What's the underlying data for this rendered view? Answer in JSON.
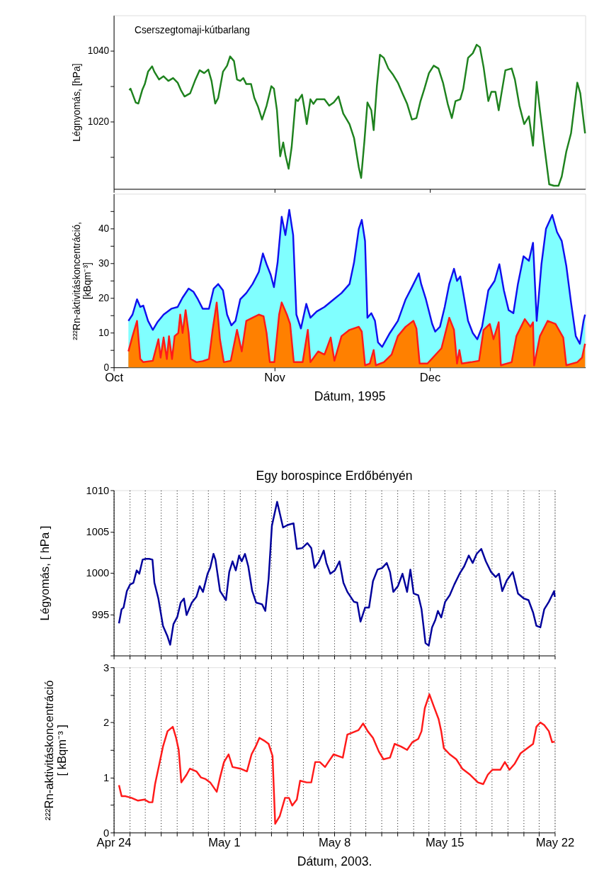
{
  "chart_data": [
    {
      "type": "line",
      "ylabel": "Légnyomás, [hPa]",
      "annotations": [
        "Cserszegtomaji-kútbarlang"
      ],
      "tick_labels": "y",
      "xlim": [
        "1995-10-01",
        "1995-12-31"
      ],
      "xticks": [
        {
          "value": "1995-10-01",
          "label": null
        },
        {
          "value": "1995-11-01",
          "label": null
        },
        {
          "value": "1995-12-01",
          "label": null
        }
      ],
      "ylim": [
        1001,
        1050
      ],
      "yticks": [
        {
          "value": 1010,
          "label": null
        },
        1020,
        {
          "value": 1030,
          "label": null
        },
        1040
      ],
      "x": [
        "1995-10-04T00:00",
        "1995-10-04T06:00",
        "1995-10-05T06:00",
        "1995-10-05T18:00",
        "1995-10-06T12:00",
        "1995-10-07T00:00",
        "1995-10-07T15:00",
        "1995-10-08T10:00",
        "1995-10-08T20:00",
        "1995-10-09T18:00",
        "1995-10-10T15:00",
        "1995-10-11T13:00",
        "1995-10-12T11:00",
        "1995-10-13T08:00",
        "1995-10-13T23:00",
        "1995-10-14T16:00",
        "1995-10-15T18:00",
        "1995-10-16T16:00",
        "1995-10-17T14:00",
        "1995-10-18T11:00",
        "1995-10-19T06:00",
        "1995-10-19T21:00",
        "1995-10-20T14:00",
        "1995-10-21T04:00",
        "1995-10-22T02:00",
        "1995-10-22T21:00",
        "1995-10-23T11:00",
        "1995-10-24T05:00",
        "1995-10-24T19:00",
        "1995-10-25T10:00",
        "1995-10-26T00:00",
        "1995-10-26T14:00",
        "1995-10-27T12:00",
        "1995-10-28T03:00",
        "1995-10-28T21:00",
        "1995-10-29T15:00",
        "1995-10-30T12:00",
        "1995-10-31T10:00",
        "1995-10-31T22:00",
        "1995-11-01T12:00",
        "1995-11-02T03:00",
        "1995-11-02T17:00",
        "1995-11-03T03:00",
        "1995-11-03T18:00",
        "1995-11-04T08:00",
        "1995-11-05T03:00",
        "1995-11-05T13:00",
        "1995-11-06T08:00",
        "1995-11-06T18:00",
        "1995-11-07T06:00",
        "1995-11-07T23:00",
        "1995-11-08T13:00",
        "1995-11-09T04:00",
        "1995-11-10T16:00",
        "1995-11-11T14:00",
        "1995-11-12T11:00",
        "1995-11-13T09:00",
        "1995-11-14T07:00",
        "1995-11-15T12:00",
        "1995-11-16T09:00",
        "1995-11-17T07:00",
        "1995-11-17T18:00",
        "1995-11-18T09:00",
        "1995-11-18T23:00",
        "1995-11-19T17:00",
        "1995-11-20T04:00",
        "1995-11-20T19:00",
        "1995-11-21T09:00",
        "1995-11-22T03:00",
        "1995-11-23T00:00",
        "1995-11-23T22:00",
        "1995-11-24T20:00",
        "1995-11-25T17:00",
        "1995-11-26T15:00",
        "1995-11-27T13:00",
        "1995-11-28T10:00",
        "1995-11-29T05:00",
        "1995-11-29T23:00",
        "1995-11-30T20:00",
        "1995-12-01T18:00",
        "1995-12-02T16:00",
        "1995-12-03T13:00",
        "1995-12-04T11:00",
        "1995-12-05T06:00",
        "1995-12-05T23:00",
        "1995-12-06T21:00",
        "1995-12-07T11:00",
        "1995-12-08T09:00",
        "1995-12-09T07:00",
        "1995-12-10T01:00",
        "1995-12-10T16:00",
        "1995-12-11T09:00",
        "1995-12-12T07:00",
        "1995-12-12T21:00",
        "1995-12-13T16:00",
        "1995-12-14T07:00",
        "1995-12-14T21:00",
        "1995-12-15T14:00",
        "1995-12-16T19:00",
        "1995-12-17T10:00",
        "1995-12-18T07:00",
        "1995-12-19T05:00",
        "1995-12-20T03:00",
        "1995-12-20T22:00",
        "1995-12-21T15:00",
        "1995-12-22T06:00",
        "1995-12-23T03:00",
        "1995-12-24T01:00",
        "1995-12-24T23:00",
        "1995-12-25T20:00",
        "1995-12-26T11:00",
        "1995-12-27T08:00",
        "1995-12-28T06:00",
        "1995-12-29T11:00",
        "1995-12-30T01:00",
        "1995-12-30T23:00"
      ],
      "series": [
        {
          "color": "#1e821e",
          "values": [
            1028.9,
            1029.3,
            1025.4,
            1025.1,
            1028.9,
            1030.6,
            1034.1,
            1035.6,
            1034.1,
            1031.9,
            1032.8,
            1031.5,
            1032.3,
            1031.0,
            1028.9,
            1027.1,
            1028.0,
            1031.5,
            1034.5,
            1033.7,
            1034.7,
            1031.5,
            1025.1,
            1026.7,
            1034.1,
            1035.8,
            1038.4,
            1037.1,
            1031.9,
            1031.5,
            1032.3,
            1030.6,
            1030.6,
            1026.7,
            1024.1,
            1020.6,
            1024.5,
            1030.0,
            1029.3,
            1023.2,
            1010.2,
            1014.1,
            1010.6,
            1006.7,
            1012.8,
            1026.3,
            1025.8,
            1027.6,
            1024.1,
            1019.3,
            1026.3,
            1025.0,
            1026.3,
            1026.3,
            1024.5,
            1025.4,
            1027.1,
            1022.3,
            1019.3,
            1015.4,
            1007.1,
            1004.1,
            1014.5,
            1025.4,
            1023.2,
            1017.6,
            1030.2,
            1038.9,
            1038.0,
            1035.0,
            1033.2,
            1031.0,
            1028.0,
            1025.0,
            1020.6,
            1021.0,
            1025.8,
            1029.3,
            1033.7,
            1035.8,
            1035.0,
            1031.0,
            1025.0,
            1021.0,
            1025.8,
            1026.3,
            1029.3,
            1038.0,
            1039.3,
            1041.7,
            1041.0,
            1035.4,
            1025.8,
            1028.4,
            1028.4,
            1023.2,
            1028.4,
            1034.5,
            1035.0,
            1031.9,
            1024.5,
            1019.3,
            1021.5,
            1013.2,
            1031.2,
            1023.2,
            1012.8,
            1002.3,
            1001.9,
            1001.9,
            1004.5,
            1011.5,
            1016.7,
            1031.0,
            1028.0,
            1016.7
          ]
        }
      ]
    },
    {
      "type": "area",
      "ylabel": "²²²Rn-aktivitáskoncentráció,\n[kBqm⁻³]",
      "xlabel": "Dátum, 1995",
      "colors": [
        "#80ffff",
        "#ff8000"
      ],
      "xlim": [
        "1995-10-01",
        "1995-12-31"
      ],
      "xticks": [
        {
          "value": "1995-10-01",
          "label": "Oct"
        },
        {
          "value": "1995-11-01",
          "label": "Nov"
        },
        {
          "value": "1995-12-01",
          "label": "Dec"
        }
      ],
      "ylim": [
        0,
        50
      ],
      "yticks": [
        0,
        {
          "value": 5,
          "label": null
        },
        10,
        {
          "value": 15,
          "label": null
        },
        20,
        {
          "value": 25,
          "label": null
        },
        30,
        {
          "value": 35,
          "label": null
        },
        40,
        {
          "value": 45,
          "label": null
        }
      ],
      "series": [
        {
          "color": "#1010ee",
          "x": [
            "1995-10-03T20:00",
            "1995-10-04T15:00",
            "1995-10-05T12:00",
            "1995-10-06T03:00",
            "1995-10-06T17:00",
            "1995-10-07T15:00",
            "1995-10-08T13:00",
            "1995-10-09T10:00",
            "1995-10-10T15:00",
            "1995-10-12T03:00",
            "1995-10-13T08:00",
            "1995-10-14T06:00",
            "1995-10-15T11:00",
            "1995-10-16T09:00",
            "1995-10-17T06:00",
            "1995-10-18T04:00",
            "1995-10-19T09:00",
            "1995-10-20T07:00",
            "1995-10-21T04:00",
            "1995-10-22T02:00",
            "1995-10-22T21:00",
            "1995-10-23T17:00",
            "1995-10-24T12:00",
            "1995-10-25T10:00",
            "1995-10-26T14:00",
            "1995-10-27T19:00",
            "1995-10-29T00:00",
            "1995-10-29T19:00",
            "1995-10-30T12:00",
            "1995-10-31T07:00",
            "1995-10-31T22:00",
            "1995-11-01T15:00",
            "1995-11-02T10:00",
            "1995-11-03T03:00",
            "1995-11-03T21:00",
            "1995-11-04T15:00",
            "1995-11-05T06:00",
            "1995-11-06T03:00",
            "1995-11-07T04:00",
            "1995-11-07T23:00",
            "1995-11-09T04:00",
            "1995-11-10T16:00",
            "1995-11-12T11:00",
            "1995-11-13T23:00",
            "1995-11-15T12:00",
            "1995-11-16T09:00",
            "1995-11-17T07:00",
            "1995-11-17T21:00",
            "1995-11-18T12:00",
            "1995-11-18T23:00",
            "1995-11-19T17:00",
            "1995-11-20T10:00",
            "1995-11-21T00:00",
            "1995-11-21T19:00",
            "1995-11-23T07:00",
            "1995-11-24T20:00",
            "1995-11-26T08:00",
            "1995-11-27T13:00",
            "1995-11-28T21:00",
            "1995-11-29T08:00",
            "1995-11-30T06:00",
            "1995-12-01T11:00",
            "1995-12-02T01:00",
            "1995-12-02T23:00",
            "1995-12-03T21:00",
            "1995-12-04T18:00",
            "1995-12-05T16:00",
            "1995-12-06T06:00",
            "1995-12-06T21:00",
            "1995-12-07T11:00",
            "1995-12-08T09:00",
            "1995-12-09T07:00",
            "1995-12-10T04:00",
            "1995-12-11T02:00",
            "1995-12-12T07:00",
            "1995-12-13T12:00",
            "1995-12-14T10:00",
            "1995-12-15T07:00",
            "1995-12-16T05:00",
            "1995-12-17T03:00",
            "1995-12-18T00:00",
            "1995-12-19T02:00",
            "1995-12-20T03:00",
            "1995-12-20T22:00",
            "1995-12-21T15:00",
            "1995-12-22T13:00",
            "1995-12-23T10:00",
            "1995-12-24T15:00",
            "1995-12-25T13:00",
            "1995-12-26T11:00",
            "1995-12-27T08:00",
            "1995-12-28T06:00",
            "1995-12-29T04:00",
            "1995-12-29T23:00",
            "1995-12-30T16:00",
            "1995-12-30T23:00"
          ],
          "values": [
            13.4,
            15.2,
            19.6,
            17.4,
            17.8,
            13.4,
            10.8,
            13.0,
            15.2,
            16.9,
            17.4,
            20.0,
            22.7,
            21.8,
            19.6,
            16.9,
            16.9,
            22.7,
            24.0,
            22.2,
            15.2,
            12.1,
            13.4,
            19.6,
            21.4,
            24.0,
            27.5,
            32.8,
            29.7,
            26.7,
            23.1,
            30.2,
            43.4,
            38.1,
            45.4,
            38.1,
            15.2,
            11.2,
            18.3,
            14.3,
            16.1,
            17.4,
            19.6,
            21.4,
            24.0,
            30.2,
            39.9,
            42.5,
            36.4,
            14.3,
            15.6,
            13.4,
            7.2,
            5.9,
            9.9,
            13.4,
            19.6,
            23.1,
            27.1,
            24.0,
            19.6,
            12.5,
            10.3,
            11.7,
            17.4,
            24.0,
            28.4,
            24.9,
            26.2,
            21.4,
            13.4,
            9.9,
            8.1,
            11.7,
            22.2,
            24.9,
            29.7,
            22.2,
            16.5,
            15.6,
            24.0,
            32.0,
            30.7,
            35.9,
            13.4,
            29.7,
            39.9,
            43.9,
            39.0,
            36.4,
            29.3,
            18.7,
            9.0,
            6.8,
            13.4,
            15.2
          ]
        },
        {
          "color": "#ff1a1a",
          "x": [
            "1995-10-03T20:00",
            "1995-10-04T15:00",
            "1995-10-05T12:00",
            "1995-10-06T03:00",
            "1995-10-06T17:00",
            "1995-10-08T13:00",
            "1995-10-09T15:00",
            "1995-10-10T01:00",
            "1995-10-10T15:00",
            "1995-10-11T06:00",
            "1995-10-11T16:00",
            "1995-10-12T06:00",
            "1995-10-12T18:00",
            "1995-10-13T11:00",
            "1995-10-13T20:00",
            "1995-10-14T07:00",
            "1995-10-14T21:00",
            "1995-10-15T11:00",
            "1995-10-15T21:00",
            "1995-10-16T23:00",
            "1995-10-18T04:00",
            "1995-10-19T09:00",
            "1995-10-20T02:00",
            "1995-10-20T21:00",
            "1995-10-21T12:00",
            "1995-10-22T06:00",
            "1995-10-23T14:00",
            "1995-10-24T19:00",
            "1995-10-25T17:00",
            "1995-10-26T14:00",
            "1995-10-27T19:00",
            "1995-10-29T00:00",
            "1995-10-29T22:00",
            "1995-10-30T12:00",
            "1995-10-31T03:00",
            "1995-11-01T00:00",
            "1995-11-01T22:00",
            "1995-11-02T10:00",
            "1995-11-03T10:00",
            "1995-11-04T01:00",
            "1995-11-04T18:00",
            "1995-11-06T11:00",
            "1995-11-07T11:00",
            "1995-11-07T23:00",
            "1995-11-09T11:00",
            "1995-11-10T16:00",
            "1995-11-11T21:00",
            "1995-11-12T14:00",
            "1995-11-13T23:00",
            "1995-11-15T12:00",
            "1995-11-17T07:00",
            "1995-11-17T21:00",
            "1995-11-18T12:00",
            "1995-11-19T10:00",
            "1995-11-20T04:00",
            "1995-11-20T14:00",
            "1995-11-22T03:00",
            "1995-11-23T15:00",
            "1995-11-24T20:00",
            "1995-11-26T08:00",
            "1995-11-27T20:00",
            "1995-11-28T10:00",
            "1995-11-29T01:00",
            "1995-11-30T13:00",
            "1995-12-03T06:00",
            "1995-12-04T18:00",
            "1995-12-05T16:00",
            "1995-12-06T06:00",
            "1995-12-06T17:00",
            "1995-12-07T04:00",
            "1995-12-08T23:00",
            "1995-12-10T12:00",
            "1995-12-11T09:00",
            "1995-12-12T14:00",
            "1995-12-13T07:00",
            "1995-12-14T07:00",
            "1995-12-14T17:00",
            "1995-12-16T19:00",
            "1995-12-17T17:00",
            "1995-12-19T08:00",
            "1995-12-20T10:00",
            "1995-12-20T22:00",
            "1995-12-21T03:00",
            "1995-12-22T06:00",
            "1995-12-23T18:00",
            "1995-12-25T06:00",
            "1995-12-26T18:00",
            "1995-12-27T08:00",
            "1995-12-29T11:00",
            "1995-12-30T09:00",
            "1995-12-30T23:00"
          ],
          "values": [
            4.6,
            9.0,
            13.4,
            2.4,
            1.5,
            1.9,
            8.1,
            2.8,
            8.6,
            2.4,
            9.0,
            2.4,
            9.0,
            9.9,
            15.2,
            9.9,
            16.5,
            9.9,
            2.4,
            1.5,
            1.8,
            2.4,
            10.8,
            18.7,
            8.1,
            1.5,
            1.9,
            10.8,
            4.6,
            13.4,
            14.3,
            15.2,
            14.7,
            9.9,
            1.5,
            1.5,
            15.2,
            18.7,
            15.2,
            12.5,
            1.5,
            1.5,
            10.8,
            1.5,
            4.6,
            3.7,
            8.6,
            1.9,
            9.0,
            10.8,
            11.7,
            10.3,
            0.6,
            1.1,
            5.0,
            0.6,
            1.5,
            3.7,
            9.0,
            11.7,
            13.4,
            11.2,
            1.1,
            1.1,
            5.5,
            14.3,
            10.8,
            1.1,
            5.0,
            1.1,
            1.5,
            1.9,
            10.8,
            12.5,
            8.1,
            13.0,
            0.6,
            1.5,
            9.0,
            13.9,
            11.7,
            13.0,
            0.6,
            9.0,
            13.4,
            12.5,
            8.6,
            0.6,
            1.5,
            2.8,
            6.8
          ]
        }
      ]
    },
    {
      "type": "line",
      "title": "Egy borospince Erdőbényén",
      "ylabel": "Légyomás, [ hPa ]",
      "tick_labels": "y",
      "grid": "x",
      "xlim": [
        "2003-04-24",
        "2003-05-22"
      ],
      "xticks": [
        {
          "value": "2003-04-24",
          "label": null
        },
        {
          "value": "2003-04-25",
          "label": null
        },
        {
          "value": "2003-04-26",
          "label": null
        },
        {
          "value": "2003-04-27",
          "label": null
        },
        {
          "value": "2003-04-28",
          "label": null
        },
        {
          "value": "2003-04-29",
          "label": null
        },
        {
          "value": "2003-04-30",
          "label": null
        },
        {
          "value": "2003-05-01",
          "label": null
        },
        {
          "value": "2003-05-02",
          "label": null
        },
        {
          "value": "2003-05-03",
          "label": null
        },
        {
          "value": "2003-05-04",
          "label": null
        },
        {
          "value": "2003-05-05",
          "label": null
        },
        {
          "value": "2003-05-06",
          "label": null
        },
        {
          "value": "2003-05-07",
          "label": null
        },
        {
          "value": "2003-05-08",
          "label": null
        },
        {
          "value": "2003-05-09",
          "label": null
        },
        {
          "value": "2003-05-10",
          "label": null
        },
        {
          "value": "2003-05-11",
          "label": null
        },
        {
          "value": "2003-05-12",
          "label": null
        },
        {
          "value": "2003-05-13",
          "label": null
        },
        {
          "value": "2003-05-14",
          "label": null
        },
        {
          "value": "2003-05-15",
          "label": null
        },
        {
          "value": "2003-05-16",
          "label": null
        },
        {
          "value": "2003-05-17",
          "label": null
        },
        {
          "value": "2003-05-18",
          "label": null
        },
        {
          "value": "2003-05-19",
          "label": null
        },
        {
          "value": "2003-05-20",
          "label": null
        },
        {
          "value": "2003-05-21",
          "label": null
        },
        {
          "value": "2003-05-22",
          "label": null
        }
      ],
      "ylim": [
        990,
        1010
      ],
      "yticks": [
        {
          "value": 990,
          "label": null
        },
        995,
        1000,
        1005,
        1010
      ],
      "x": [
        "2003-04-24T08:00",
        "2003-04-24T12:00",
        "2003-04-24T15:00",
        "2003-04-24T20:00",
        "2003-04-25T01:00",
        "2003-04-25T06:00",
        "2003-04-25T11:00",
        "2003-04-25T15:00",
        "2003-04-25T20:00",
        "2003-04-26T01:00",
        "2003-04-26T06:00",
        "2003-04-26T11:00",
        "2003-04-26T14:00",
        "2003-04-26T20:00",
        "2003-04-27T03:00",
        "2003-04-27T10:00",
        "2003-04-27T14:00",
        "2003-04-27T19:00",
        "2003-04-28T01:00",
        "2003-04-28T06:00",
        "2003-04-28T11:00",
        "2003-04-28T15:00",
        "2003-04-28T23:00",
        "2003-04-29T06:00",
        "2003-04-29T11:00",
        "2003-04-29T16:00",
        "2003-04-29T23:00",
        "2003-04-30T03:00",
        "2003-04-30T08:00",
        "2003-04-30T11:00",
        "2003-04-30T18:00",
        "2003-05-01T03:00",
        "2003-05-01T08:00",
        "2003-05-01T13:00",
        "2003-05-01T18:00",
        "2003-05-01T23:00",
        "2003-05-02T03:00",
        "2003-05-02T08:00",
        "2003-05-02T13:00",
        "2003-05-02T19:00",
        "2003-05-03T01:00",
        "2003-05-03T10:00",
        "2003-05-03T15:00",
        "2003-05-03T20:00",
        "2003-05-04T01:00",
        "2003-05-04T09:00",
        "2003-05-04T18:00",
        "2003-05-05T01:00",
        "2003-05-05T10:00",
        "2003-05-05T15:00",
        "2003-05-05T23:00",
        "2003-05-06T07:00",
        "2003-05-06T13:00",
        "2003-05-06T18:00",
        "2003-05-07T01:00",
        "2003-05-07T08:00",
        "2003-05-07T12:00",
        "2003-05-07T18:00",
        "2003-05-08T01:00",
        "2003-05-08T08:00",
        "2003-05-08T14:00",
        "2003-05-08T20:00",
        "2003-05-09T06:00",
        "2003-05-09T11:00",
        "2003-05-09T16:00",
        "2003-05-09T23:00",
        "2003-05-10T05:00",
        "2003-05-10T11:00",
        "2003-05-10T18:00",
        "2003-05-11T01:00",
        "2003-05-11T08:00",
        "2003-05-11T13:00",
        "2003-05-11T18:00",
        "2003-05-12T01:00",
        "2003-05-12T08:00",
        "2003-05-12T15:00",
        "2003-05-12T20:00",
        "2003-05-13T01:00",
        "2003-05-13T08:00",
        "2003-05-13T13:00",
        "2003-05-13T19:00",
        "2003-05-14T00:00",
        "2003-05-14T05:00",
        "2003-05-14T10:00",
        "2003-05-14T14:00",
        "2003-05-14T19:00",
        "2003-05-15T01:00",
        "2003-05-15T08:00",
        "2003-05-15T15:00",
        "2003-05-15T23:00",
        "2003-05-16T06:00",
        "2003-05-16T13:00",
        "2003-05-16T19:00",
        "2003-05-17T01:00",
        "2003-05-17T08:00",
        "2003-05-17T15:00",
        "2003-05-17T23:00",
        "2003-05-18T06:00",
        "2003-05-18T11:00",
        "2003-05-18T16:00",
        "2003-05-18T23:00",
        "2003-05-19T08:00",
        "2003-05-19T16:00",
        "2003-05-20T01:00",
        "2003-05-20T08:00",
        "2003-05-20T15:00",
        "2003-05-20T20:00",
        "2003-05-21T02:00",
        "2003-05-21T08:00",
        "2003-05-21T15:00",
        "2003-05-21T23:00",
        "2003-05-22T00:00"
      ],
      "series": [
        {
          "color": "#00009c",
          "values": [
            993.9,
            995.6,
            995.8,
            997.8,
            998.6,
            998.8,
            1000.3,
            999.9,
            1001.6,
            1001.7,
            1001.7,
            1001.6,
            998.8,
            996.9,
            993.6,
            992.3,
            991.3,
            993.8,
            994.7,
            996.4,
            996.9,
            994.9,
            996.4,
            997.1,
            998.4,
            997.7,
            999.9,
            1000.6,
            1002.3,
            1001.6,
            997.8,
            996.7,
            1000.1,
            1001.4,
            1000.3,
            1002.1,
            1001.4,
            1002.3,
            1000.8,
            997.8,
            996.4,
            996.2,
            995.4,
            999.3,
            1005.7,
            1008.6,
            1005.5,
            1005.8,
            1006.0,
            1002.9,
            1003.0,
            1003.6,
            1003.0,
            1000.6,
            1001.4,
            1002.7,
            1001.2,
            999.9,
            1000.3,
            1001.4,
            998.8,
            997.7,
            996.5,
            996.4,
            994.1,
            995.8,
            995.8,
            999.0,
            1000.4,
            1000.6,
            1001.2,
            1000.1,
            997.7,
            998.4,
            999.9,
            997.7,
            1000.4,
            997.5,
            997.3,
            995.6,
            991.5,
            991.2,
            993.4,
            994.3,
            995.4,
            994.6,
            996.5,
            997.3,
            998.6,
            999.9,
            1000.8,
            1002.1,
            1001.2,
            1002.3,
            1002.9,
            1001.4,
            1000.1,
            999.5,
            999.9,
            997.8,
            999.1,
            1000.1,
            997.5,
            996.9,
            996.7,
            995.2,
            993.6,
            993.4,
            995.6,
            996.5,
            997.8,
            997.1
          ]
        }
      ]
    },
    {
      "type": "line",
      "ylabel": "²²²Rn-aktivitáskoncentráció\n[ kBqm⁻³ ]",
      "xlabel": "Dátum, 2003.",
      "grid": "x",
      "xlim": [
        "2003-04-24",
        "2003-05-22"
      ],
      "xticks": [
        {
          "value": "2003-04-24",
          "label": "Apr 24"
        },
        {
          "value": "2003-04-25",
          "label": null
        },
        {
          "value": "2003-04-26",
          "label": null
        },
        {
          "value": "2003-04-27",
          "label": null
        },
        {
          "value": "2003-04-28",
          "label": null
        },
        {
          "value": "2003-04-29",
          "label": null
        },
        {
          "value": "2003-04-30",
          "label": null
        },
        {
          "value": "2003-05-01",
          "label": "May 1"
        },
        {
          "value": "2003-05-02",
          "label": null
        },
        {
          "value": "2003-05-03",
          "label": null
        },
        {
          "value": "2003-05-04",
          "label": null
        },
        {
          "value": "2003-05-05",
          "label": null
        },
        {
          "value": "2003-05-06",
          "label": null
        },
        {
          "value": "2003-05-07",
          "label": null
        },
        {
          "value": "2003-05-08",
          "label": "May 8"
        },
        {
          "value": "2003-05-09",
          "label": null
        },
        {
          "value": "2003-05-10",
          "label": null
        },
        {
          "value": "2003-05-11",
          "label": null
        },
        {
          "value": "2003-05-12",
          "label": null
        },
        {
          "value": "2003-05-13",
          "label": null
        },
        {
          "value": "2003-05-14",
          "label": null
        },
        {
          "value": "2003-05-15",
          "label": "May 15"
        },
        {
          "value": "2003-05-16",
          "label": null
        },
        {
          "value": "2003-05-17",
          "label": null
        },
        {
          "value": "2003-05-18",
          "label": null
        },
        {
          "value": "2003-05-19",
          "label": null
        },
        {
          "value": "2003-05-20",
          "label": null
        },
        {
          "value": "2003-05-21",
          "label": null
        },
        {
          "value": "2003-05-22",
          "label": "May 22"
        }
      ],
      "ylim": [
        0,
        3
      ],
      "yticks": [
        0,
        {
          "value": 0.5,
          "label": null
        },
        1,
        {
          "value": 1.5,
          "label": null
        },
        2,
        {
          "value": 2.5,
          "label": null
        },
        3
      ],
      "x": [
        "2003-04-24T08:00",
        "2003-04-24T12:00",
        "2003-04-24T18:00",
        "2003-04-25T03:00",
        "2003-04-25T13:00",
        "2003-04-25T23:00",
        "2003-04-26T06:00",
        "2003-04-26T11:00",
        "2003-04-26T15:00",
        "2003-04-26T23:00",
        "2003-04-27T03:00",
        "2003-04-27T10:00",
        "2003-04-27T18:00",
        "2003-04-27T23:00",
        "2003-04-28T03:00",
        "2003-04-28T07:00",
        "2003-04-28T15:00",
        "2003-04-28T20:00",
        "2003-04-29T06:00",
        "2003-04-29T13:00",
        "2003-04-29T20:00",
        "2003-04-30T03:00",
        "2003-04-30T13:00",
        "2003-04-30T18:00",
        "2003-05-01T00:00",
        "2003-05-01T07:00",
        "2003-05-01T13:00",
        "2003-05-02T01:00",
        "2003-05-02T11:00",
        "2003-05-02T18:00",
        "2003-05-03T01:00",
        "2003-05-03T06:00",
        "2003-05-03T13:00",
        "2003-05-03T20:00",
        "2003-05-04T02:00",
        "2003-05-04T06:00",
        "2003-05-04T13:00",
        "2003-05-04T21:00",
        "2003-05-05T03:00",
        "2003-05-05T08:00",
        "2003-05-05T15:00",
        "2003-05-05T20:00",
        "2003-05-06T06:00",
        "2003-05-06T13:00",
        "2003-05-06T19:00",
        "2003-05-07T02:00",
        "2003-05-07T10:00",
        "2003-05-07T15:00",
        "2003-05-07T23:00",
        "2003-05-08T06:00",
        "2003-05-08T13:00",
        "2003-05-08T20:00",
        "2003-05-09T03:00",
        "2003-05-09T13:00",
        "2003-05-09T20:00",
        "2003-05-10T03:00",
        "2003-05-10T11:00",
        "2003-05-10T20:00",
        "2003-05-11T03:00",
        "2003-05-11T13:00",
        "2003-05-11T20:00",
        "2003-05-12T06:00",
        "2003-05-12T15:00",
        "2003-05-12T23:00",
        "2003-05-13T08:00",
        "2003-05-13T13:00",
        "2003-05-13T18:00",
        "2003-05-14T01:00",
        "2003-05-14T08:00",
        "2003-05-14T15:00",
        "2003-05-14T19:00",
        "2003-05-14T23:00",
        "2003-05-15T08:00",
        "2003-05-15T18:00",
        "2003-05-16T03:00",
        "2003-05-16T15:00",
        "2003-05-17T03:00",
        "2003-05-17T11:00",
        "2003-05-17T18:00",
        "2003-05-18T01:00",
        "2003-05-18T13:00",
        "2003-05-18T20:00",
        "2003-05-19T03:00",
        "2003-05-19T11:00",
        "2003-05-19T20:00",
        "2003-05-20T06:00",
        "2003-05-20T15:00",
        "2003-05-20T20:00",
        "2003-05-21T02:00",
        "2003-05-21T08:00",
        "2003-05-21T15:00",
        "2003-05-21T20:00",
        "2003-05-22T00:00"
      ],
      "series": [
        {
          "color": "#ff1a1a",
          "values": [
            0.86,
            0.66,
            0.66,
            0.63,
            0.58,
            0.6,
            0.55,
            0.55,
            0.88,
            1.33,
            1.56,
            1.84,
            1.92,
            1.72,
            1.5,
            0.91,
            1.05,
            1.16,
            1.11,
            1.0,
            0.97,
            0.91,
            0.74,
            1.0,
            1.28,
            1.42,
            1.19,
            1.16,
            1.11,
            1.42,
            1.58,
            1.72,
            1.67,
            1.61,
            1.39,
            0.16,
            0.3,
            0.63,
            0.63,
            0.49,
            0.6,
            0.94,
            0.91,
            0.91,
            1.28,
            1.28,
            1.19,
            1.28,
            1.42,
            1.39,
            1.36,
            1.78,
            1.81,
            1.86,
            1.98,
            1.84,
            1.72,
            1.47,
            1.33,
            1.36,
            1.61,
            1.56,
            1.5,
            1.64,
            1.7,
            1.84,
            2.26,
            2.51,
            2.28,
            2.06,
            1.84,
            1.53,
            1.42,
            1.33,
            1.16,
            1.05,
            0.91,
            0.88,
            1.05,
            1.14,
            1.14,
            1.28,
            1.14,
            1.25,
            1.44,
            1.53,
            1.61,
            1.92,
            2.0,
            1.95,
            1.84,
            1.64,
            1.65
          ]
        }
      ]
    }
  ]
}
